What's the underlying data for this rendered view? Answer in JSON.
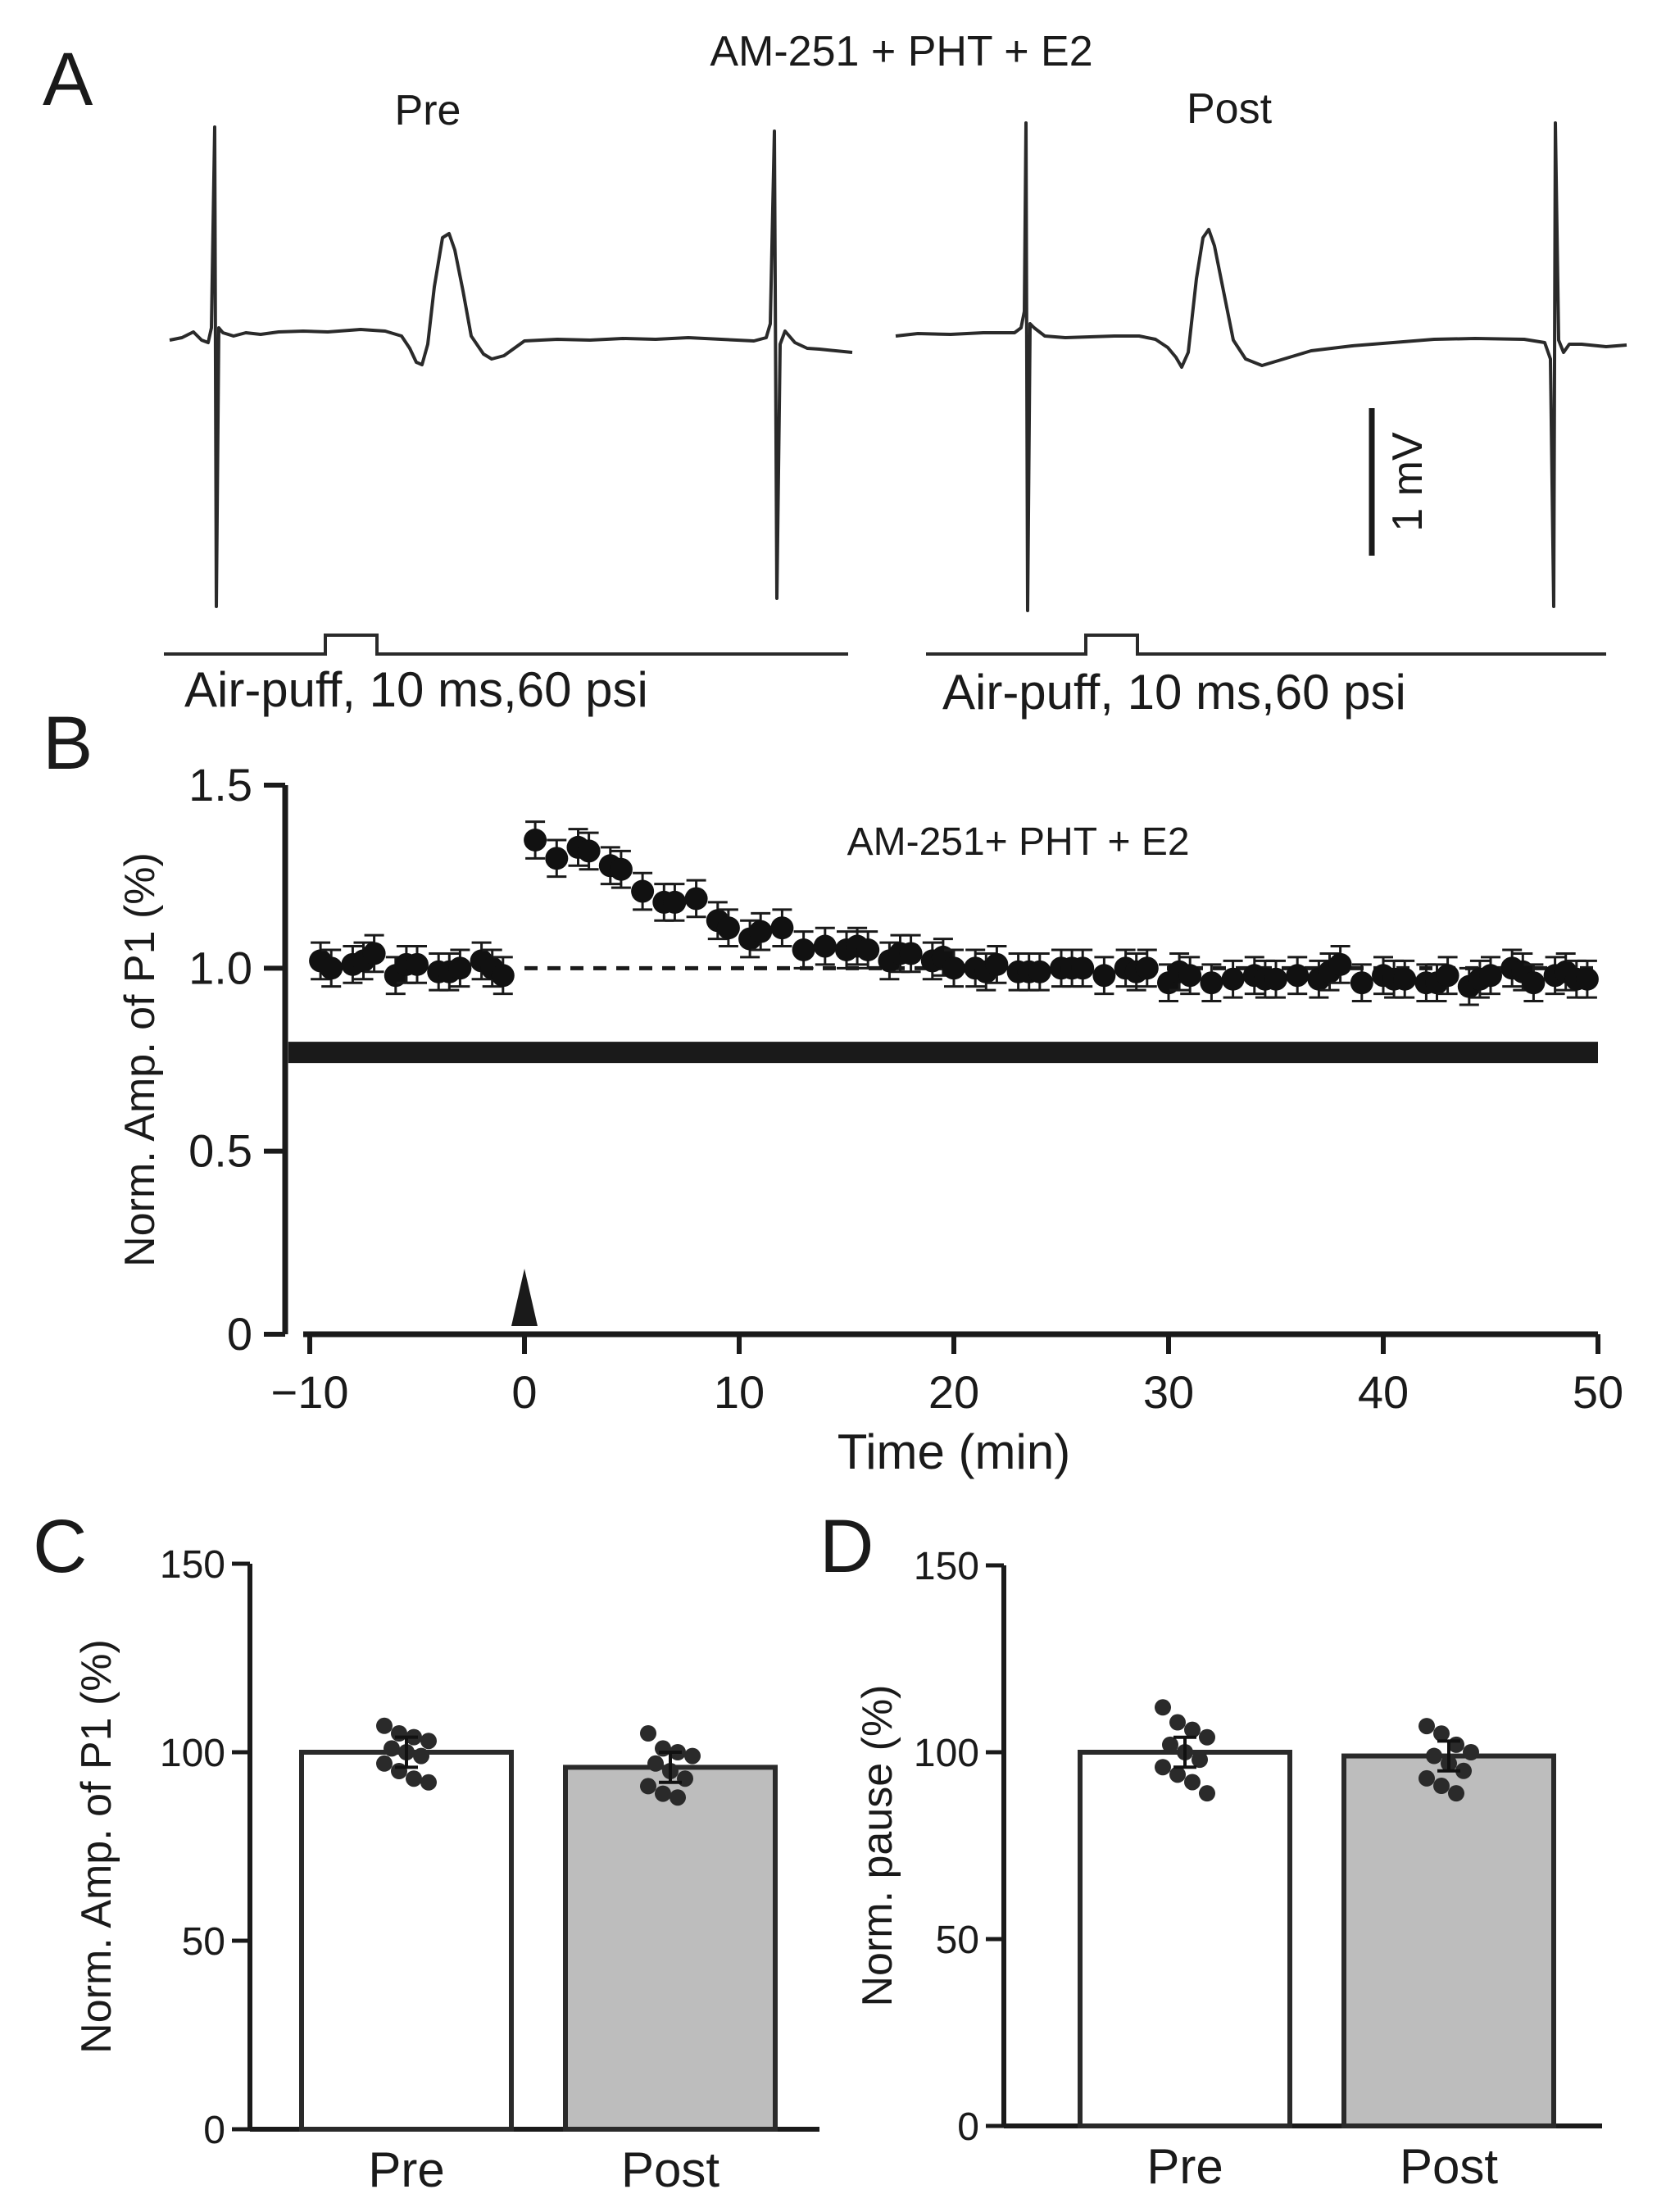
{
  "panels": {
    "A": {
      "letter": "A",
      "title": "AM-251 + PHT + E2",
      "pre_label": "Pre",
      "post_label": "Post",
      "stim_label_pre": "Air-puff, 10 ms,60 psi",
      "stim_label_post": "Air-puff, 10 ms,60 psi",
      "scale_label": "1 mV"
    },
    "B": {
      "letter": "B"
    },
    "C": {
      "letter": "C"
    },
    "D": {
      "letter": "D"
    }
  },
  "chart_data": [
    {
      "id": "B",
      "type": "scatter",
      "title": "AM-251+ PHT + E2",
      "xlabel": "Time (min)",
      "ylabel": "Norm. Amp. of P1 (%)",
      "xlim": [
        -10,
        50
      ],
      "ylim": [
        0,
        1.5
      ],
      "xticks": [
        -10,
        0,
        10,
        20,
        30,
        40,
        50
      ],
      "xtick_labels": [
        "−10",
        "0",
        "10",
        "20",
        "30",
        "40",
        "50"
      ],
      "yticks": [
        0,
        0.5,
        1.0,
        1.5
      ],
      "ytick_labels": [
        "0",
        "0.5",
        "1.0",
        "1.5"
      ],
      "reference_line": 1.0,
      "drug_bar_level": 0.77,
      "drug_bar_range": [
        -11,
        50
      ],
      "arrow_at": 0,
      "series": [
        {
          "name": "Norm. Amp. of P1",
          "x": [
            -9.5,
            -9,
            -8,
            -7.5,
            -7,
            -6,
            -5.5,
            -5,
            -4,
            -3.5,
            -3,
            -2,
            -1.5,
            -1,
            0.5,
            1.5,
            2.5,
            3,
            4,
            4.5,
            5.5,
            6.5,
            7,
            8,
            9,
            9.5,
            10.5,
            11,
            12,
            13,
            14,
            15,
            15.5,
            16,
            17,
            17.5,
            18,
            19,
            19.5,
            20,
            21,
            21.5,
            22,
            23,
            23.5,
            24,
            25,
            25.5,
            26,
            27,
            28,
            28.5,
            29,
            30,
            30.5,
            31,
            32,
            33,
            34,
            34.5,
            35,
            36,
            37,
            37.5,
            38,
            39,
            40,
            40.5,
            41,
            42,
            42.5,
            43,
            44,
            44.5,
            45,
            46,
            46.5,
            47,
            48,
            48.5,
            49,
            49.5
          ],
          "values": [
            1.02,
            1.0,
            1.01,
            1.02,
            1.04,
            0.98,
            1.01,
            1.01,
            0.99,
            0.99,
            1.0,
            1.02,
            1.0,
            0.98,
            1.35,
            1.3,
            1.33,
            1.32,
            1.28,
            1.27,
            1.21,
            1.18,
            1.18,
            1.19,
            1.13,
            1.11,
            1.08,
            1.1,
            1.11,
            1.05,
            1.06,
            1.05,
            1.06,
            1.05,
            1.02,
            1.04,
            1.04,
            1.02,
            1.03,
            1.0,
            1.0,
            0.99,
            1.01,
            0.99,
            0.99,
            0.99,
            1.0,
            1.0,
            1.0,
            0.98,
            1.0,
            0.99,
            1.0,
            0.96,
            0.99,
            0.98,
            0.96,
            0.97,
            0.98,
            0.97,
            0.97,
            0.98,
            0.97,
            0.99,
            1.01,
            0.96,
            0.98,
            0.97,
            0.97,
            0.96,
            0.96,
            0.98,
            0.95,
            0.97,
            0.98,
            1.0,
            0.99,
            0.96,
            0.98,
            0.99,
            0.97,
            0.97
          ],
          "error": 0.05
        }
      ]
    },
    {
      "id": "C",
      "type": "bar",
      "categories": [
        "Pre",
        "Post"
      ],
      "values": [
        100,
        96
      ],
      "errors": [
        4,
        4
      ],
      "bar_colors": [
        "#ffffff",
        "#bdbdbd"
      ],
      "ylabel": "Norm. Amp. of P1 (%)",
      "ylim": [
        0,
        150
      ],
      "yticks": [
        0,
        50,
        100,
        150
      ],
      "ytick_labels": [
        "0",
        "50",
        "100",
        "150"
      ],
      "points": [
        [
          107,
          105,
          104,
          103,
          101,
          100,
          99,
          97,
          95,
          93,
          92
        ],
        [
          105,
          101,
          100,
          99,
          97,
          95,
          93,
          91,
          89,
          88
        ]
      ]
    },
    {
      "id": "D",
      "type": "bar",
      "categories": [
        "Pre",
        "Post"
      ],
      "values": [
        100,
        99
      ],
      "errors": [
        4,
        4
      ],
      "bar_colors": [
        "#ffffff",
        "#bdbdbd"
      ],
      "ylabel": "Norm. pause (%)",
      "ylim": [
        0,
        150
      ],
      "yticks": [
        0,
        50,
        100,
        150
      ],
      "ytick_labels": [
        "0",
        "50",
        "100",
        "150"
      ],
      "points": [
        [
          112,
          108,
          106,
          104,
          102,
          100,
          98,
          96,
          94,
          92,
          89
        ],
        [
          107,
          105,
          102,
          100,
          99,
          97,
          95,
          93,
          91,
          89
        ]
      ]
    }
  ]
}
